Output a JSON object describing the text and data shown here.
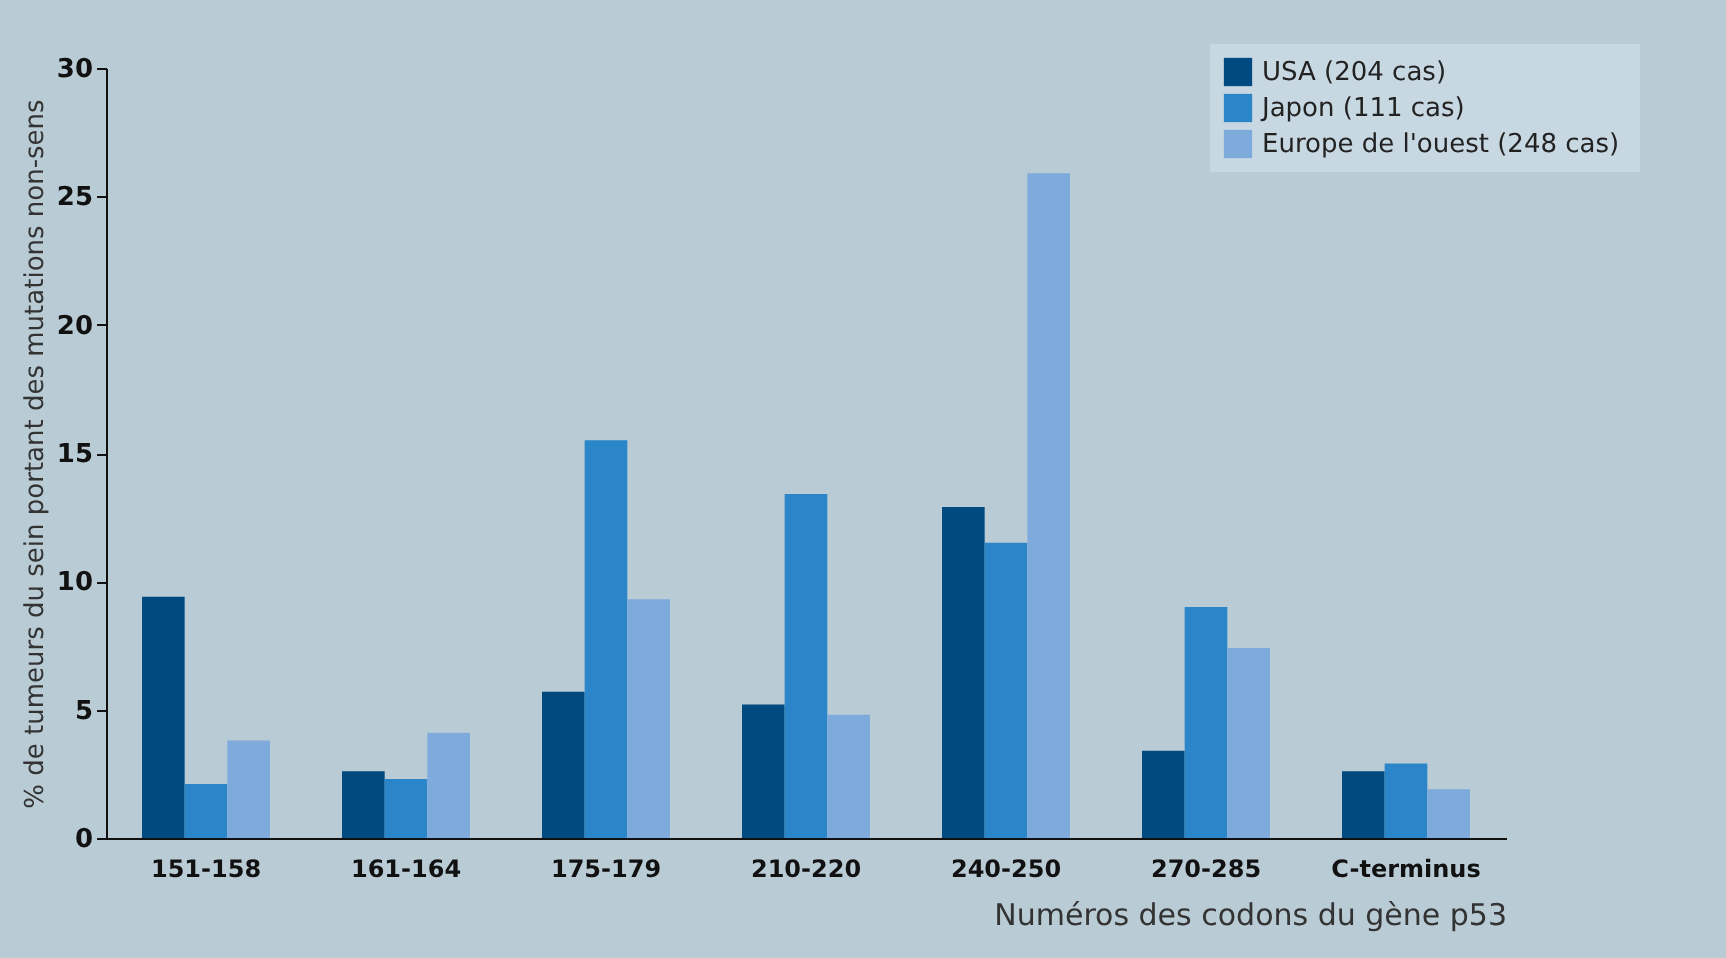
{
  "chart_data": {
    "type": "bar",
    "xlabel": "Numéros des codons du gène p53",
    "ylabel": "% de tumeurs du sein portant des mutations non-sens",
    "categories": [
      "151-158",
      "161-164",
      "175-179",
      "210-220",
      "240-250",
      "270-285",
      "C-terminus"
    ],
    "series": [
      {
        "name": "USA (204 cas)",
        "color": "#004a80",
        "values": [
          9.4,
          2.6,
          5.7,
          5.2,
          12.9,
          3.4,
          2.6
        ]
      },
      {
        "name": "Japon (111 cas)",
        "color": "#2a86c8",
        "values": [
          2.1,
          2.3,
          15.5,
          13.4,
          11.5,
          9.0,
          2.9
        ]
      },
      {
        "name": "Europe de l'ouest  (248 cas)",
        "color": "#7eaadc",
        "values": [
          3.8,
          4.1,
          9.3,
          4.8,
          25.9,
          7.4,
          1.9
        ]
      }
    ],
    "ylim": [
      0,
      30
    ],
    "yticks": [
      0,
      5,
      10,
      15,
      20,
      25,
      30
    ],
    "grid": false,
    "legend": "top right"
  }
}
